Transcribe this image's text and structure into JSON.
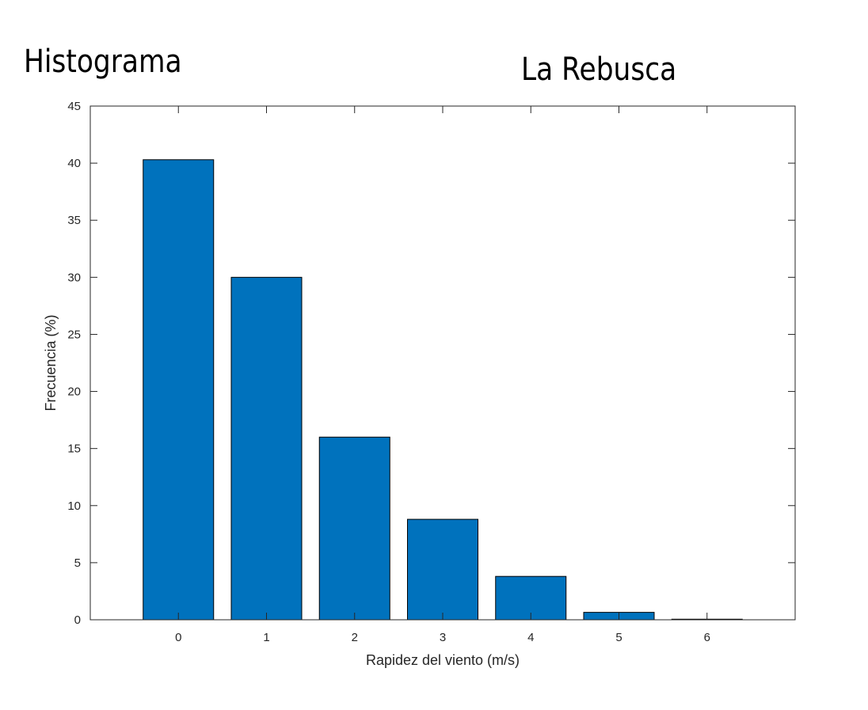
{
  "header": {
    "left_title": "Histograma",
    "right_title": "La Rebusca"
  },
  "chart_data": {
    "type": "bar",
    "categories": [
      "0",
      "1",
      "2",
      "3",
      "4",
      "5",
      "6"
    ],
    "values": [
      40.3,
      30.0,
      16.0,
      8.8,
      3.8,
      0.65,
      0.05
    ],
    "xlabel": "Rapidez del viento (m/s)",
    "ylabel": "Frecuencia (%)",
    "ylim": [
      0,
      45
    ],
    "xlim": [
      -1,
      7
    ],
    "yticks": [
      0,
      5,
      10,
      15,
      20,
      25,
      30,
      35,
      40,
      45
    ],
    "grid": false,
    "bar_color": "#0072BD",
    "edge_color": "#000000"
  }
}
